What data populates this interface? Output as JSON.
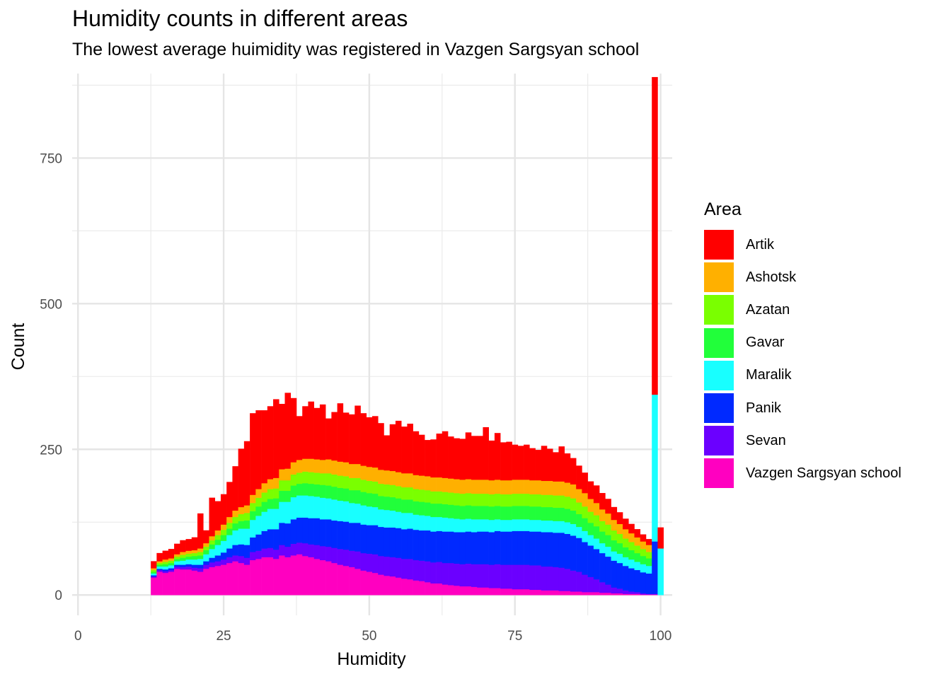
{
  "chart_data": {
    "type": "bar",
    "stacked": true,
    "title": "Humidity counts in different areas",
    "subtitle": "The lowest average huimidity was registered in Vazgen Sargsyan school",
    "xlabel": "Humidity",
    "ylabel": "Count",
    "xlim": [
      -1,
      102
    ],
    "ylim": [
      -35,
      895
    ],
    "x_ticks": [
      0,
      25,
      50,
      75,
      100
    ],
    "y_ticks": [
      0,
      250,
      500,
      750
    ],
    "grid": true,
    "legend_title": "Area",
    "legend_position": "right",
    "x": [
      13,
      14,
      15,
      16,
      17,
      18,
      19,
      20,
      21,
      22,
      23,
      24,
      25,
      26,
      27,
      28,
      29,
      30,
      31,
      32,
      33,
      34,
      35,
      36,
      37,
      38,
      39,
      40,
      41,
      42,
      43,
      44,
      45,
      46,
      47,
      48,
      49,
      50,
      51,
      52,
      53,
      54,
      55,
      56,
      57,
      58,
      59,
      60,
      61,
      62,
      63,
      64,
      65,
      66,
      67,
      68,
      69,
      70,
      71,
      72,
      73,
      74,
      75,
      76,
      77,
      78,
      79,
      80,
      81,
      82,
      83,
      84,
      85,
      86,
      87,
      88,
      89,
      90,
      91,
      92,
      93,
      94,
      95,
      96,
      97,
      98,
      99,
      100
    ],
    "series": [
      {
        "name": "Vazgen Sargsyan school",
        "color": "#FF00C0",
        "values": [
          30,
          40,
          38,
          40,
          45,
          44,
          44,
          42,
          40,
          45,
          48,
          50,
          52,
          55,
          58,
          55,
          52,
          60,
          62,
          65,
          65,
          62,
          68,
          65,
          68,
          70,
          67,
          65,
          62,
          60,
          58,
          55,
          52,
          50,
          48,
          45,
          42,
          40,
          38,
          35,
          33,
          32,
          30,
          28,
          27,
          25,
          24,
          22,
          20,
          20,
          18,
          17,
          16,
          15,
          15,
          14,
          13,
          13,
          12,
          12,
          11,
          11,
          10,
          10,
          10,
          9,
          9,
          8,
          8,
          8,
          7,
          7,
          6,
          6,
          5,
          5,
          5,
          4,
          4,
          3,
          3,
          2,
          2,
          2,
          1,
          1,
          1,
          0
        ]
      },
      {
        "name": "Sevan",
        "color": "#6B00FF",
        "values": [
          2,
          3,
          3,
          3,
          4,
          4,
          5,
          5,
          6,
          7,
          8,
          8,
          9,
          10,
          10,
          12,
          12,
          14,
          14,
          15,
          16,
          16,
          18,
          18,
          20,
          20,
          22,
          22,
          24,
          24,
          25,
          26,
          27,
          28,
          28,
          30,
          30,
          31,
          32,
          32,
          33,
          33,
          34,
          34,
          35,
          35,
          35,
          36,
          36,
          37,
          37,
          38,
          38,
          38,
          39,
          39,
          40,
          40,
          40,
          41,
          41,
          41,
          42,
          42,
          42,
          42,
          42,
          41,
          41,
          40,
          40,
          38,
          36,
          34,
          30,
          26,
          22,
          18,
          14,
          10,
          8,
          6,
          4,
          3,
          2,
          1,
          1,
          0
        ]
      },
      {
        "name": "Panik",
        "color": "#0029FF",
        "values": [
          2,
          2,
          3,
          3,
          3,
          4,
          4,
          5,
          6,
          6,
          8,
          10,
          12,
          15,
          18,
          20,
          22,
          25,
          28,
          30,
          32,
          35,
          38,
          40,
          42,
          43,
          44,
          45,
          46,
          46,
          47,
          47,
          48,
          48,
          48,
          49,
          49,
          49,
          50,
          50,
          50,
          51,
          51,
          51,
          52,
          52,
          52,
          53,
          53,
          53,
          54,
          54,
          54,
          55,
          55,
          55,
          56,
          56,
          56,
          57,
          57,
          57,
          58,
          58,
          58,
          58,
          58,
          59,
          59,
          59,
          60,
          60,
          60,
          58,
          56,
          54,
          52,
          50,
          48,
          46,
          44,
          42,
          40,
          38,
          36,
          35,
          90,
          0
        ]
      },
      {
        "name": "Maralik",
        "color": "#18FFFF",
        "values": [
          3,
          4,
          5,
          5,
          6,
          7,
          8,
          9,
          10,
          12,
          15,
          18,
          20,
          23,
          25,
          27,
          28,
          30,
          32,
          33,
          35,
          35,
          36,
          37,
          38,
          38,
          38,
          38,
          37,
          37,
          36,
          36,
          35,
          35,
          34,
          33,
          33,
          32,
          31,
          30,
          30,
          29,
          28,
          28,
          27,
          26,
          26,
          25,
          25,
          24,
          24,
          23,
          23,
          22,
          22,
          22,
          21,
          21,
          21,
          20,
          20,
          20,
          20,
          20,
          20,
          20,
          20,
          20,
          20,
          20,
          20,
          20,
          20,
          19,
          19,
          18,
          18,
          17,
          17,
          16,
          16,
          15,
          15,
          14,
          14,
          13,
          252,
          80
        ]
      },
      {
        "name": "Gavar",
        "color": "#21FF3A",
        "values": [
          3,
          3,
          4,
          4,
          4,
          5,
          5,
          6,
          6,
          7,
          8,
          9,
          10,
          11,
          12,
          13,
          14,
          15,
          16,
          17,
          17,
          18,
          19,
          19,
          20,
          20,
          21,
          21,
          21,
          22,
          22,
          22,
          22,
          22,
          22,
          23,
          23,
          23,
          23,
          23,
          23,
          23,
          23,
          23,
          23,
          23,
          23,
          23,
          23,
          23,
          23,
          23,
          23,
          23,
          23,
          23,
          23,
          23,
          23,
          23,
          23,
          23,
          23,
          23,
          23,
          23,
          23,
          23,
          23,
          23,
          23,
          23,
          23,
          22,
          22,
          21,
          21,
          20,
          20,
          19,
          18,
          17,
          16,
          15,
          14,
          13,
          0,
          0
        ]
      },
      {
        "name": "Azatan",
        "color": "#7AFF00",
        "values": [
          3,
          3,
          4,
          4,
          4,
          5,
          5,
          5,
          6,
          6,
          7,
          8,
          9,
          10,
          11,
          12,
          13,
          14,
          15,
          16,
          17,
          17,
          18,
          18,
          19,
          19,
          20,
          20,
          20,
          20,
          21,
          21,
          21,
          21,
          21,
          21,
          21,
          21,
          21,
          21,
          21,
          21,
          21,
          21,
          21,
          21,
          21,
          21,
          21,
          21,
          21,
          21,
          21,
          21,
          21,
          21,
          21,
          21,
          21,
          21,
          21,
          21,
          21,
          21,
          21,
          21,
          21,
          21,
          21,
          21,
          21,
          21,
          21,
          20,
          20,
          19,
          19,
          18,
          18,
          17,
          16,
          15,
          14,
          13,
          12,
          11,
          0,
          0
        ]
      },
      {
        "name": "Ashotsk",
        "color": "#FFB000",
        "values": [
          3,
          3,
          4,
          4,
          4,
          5,
          5,
          5,
          6,
          6,
          7,
          8,
          9,
          10,
          11,
          12,
          13,
          14,
          15,
          16,
          17,
          18,
          19,
          20,
          21,
          22,
          22,
          23,
          23,
          23,
          24,
          24,
          24,
          24,
          24,
          24,
          24,
          24,
          24,
          24,
          24,
          24,
          24,
          24,
          24,
          24,
          24,
          24,
          24,
          24,
          24,
          24,
          24,
          24,
          24,
          24,
          24,
          24,
          24,
          24,
          24,
          24,
          24,
          24,
          24,
          24,
          24,
          24,
          24,
          24,
          24,
          24,
          24,
          23,
          23,
          22,
          21,
          20,
          19,
          18,
          17,
          16,
          15,
          14,
          13,
          12,
          0,
          0
        ]
      },
      {
        "name": "Artik",
        "color": "#FF0000",
        "values": [
          12,
          14,
          15,
          16,
          18,
          20,
          20,
          22,
          60,
          22,
          66,
          50,
          52,
          60,
          76,
          100,
          110,
          140,
          135,
          125,
          125,
          135,
          112,
          130,
          110,
          75,
          90,
          98,
          88,
          95,
          70,
          83,
          100,
          85,
          85,
          100,
          90,
          85,
          88,
          80,
          60,
          80,
          88,
          80,
          85,
          75,
          70,
          62,
          65,
          75,
          80,
          72,
          70,
          70,
          80,
          75,
          75,
          90,
          68,
          80,
          65,
          66,
          60,
          58,
          60,
          55,
          52,
          60,
          55,
          50,
          60,
          50,
          45,
          40,
          35,
          30,
          30,
          28,
          25,
          22,
          20,
          18,
          16,
          14,
          12,
          10,
          545,
          36
        ]
      }
    ]
  }
}
